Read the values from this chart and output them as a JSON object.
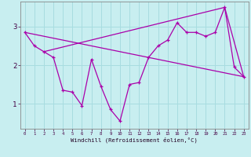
{
  "xlabel": "Windchill (Refroidissement éolien,°C)",
  "background_color": "#c8eef0",
  "grid_color": "#a8dce0",
  "line_color": "#aa00aa",
  "xlim": [
    -0.5,
    23.5
  ],
  "ylim": [
    0.35,
    3.65
  ],
  "xticks": [
    0,
    1,
    2,
    3,
    4,
    5,
    6,
    7,
    8,
    9,
    10,
    11,
    12,
    13,
    14,
    15,
    16,
    17,
    18,
    19,
    20,
    21,
    22,
    23
  ],
  "yticks": [
    1,
    2,
    3
  ],
  "series_main": {
    "x": [
      0,
      1,
      2,
      3,
      4,
      5,
      6,
      7,
      8,
      9,
      10,
      11,
      12,
      13,
      14,
      15,
      16,
      17,
      18,
      19,
      20,
      21,
      22,
      23
    ],
    "y": [
      2.85,
      2.5,
      2.35,
      2.2,
      1.35,
      1.3,
      0.95,
      2.15,
      1.45,
      0.85,
      0.55,
      1.5,
      1.55,
      2.2,
      2.5,
      2.65,
      3.1,
      2.85,
      2.85,
      2.75,
      2.85,
      3.5,
      1.95,
      1.7
    ]
  },
  "series_straight": {
    "x": [
      0,
      23
    ],
    "y": [
      2.85,
      1.7
    ]
  },
  "series_envelope": {
    "x": [
      2,
      21,
      23
    ],
    "y": [
      2.35,
      3.5,
      1.7
    ]
  }
}
